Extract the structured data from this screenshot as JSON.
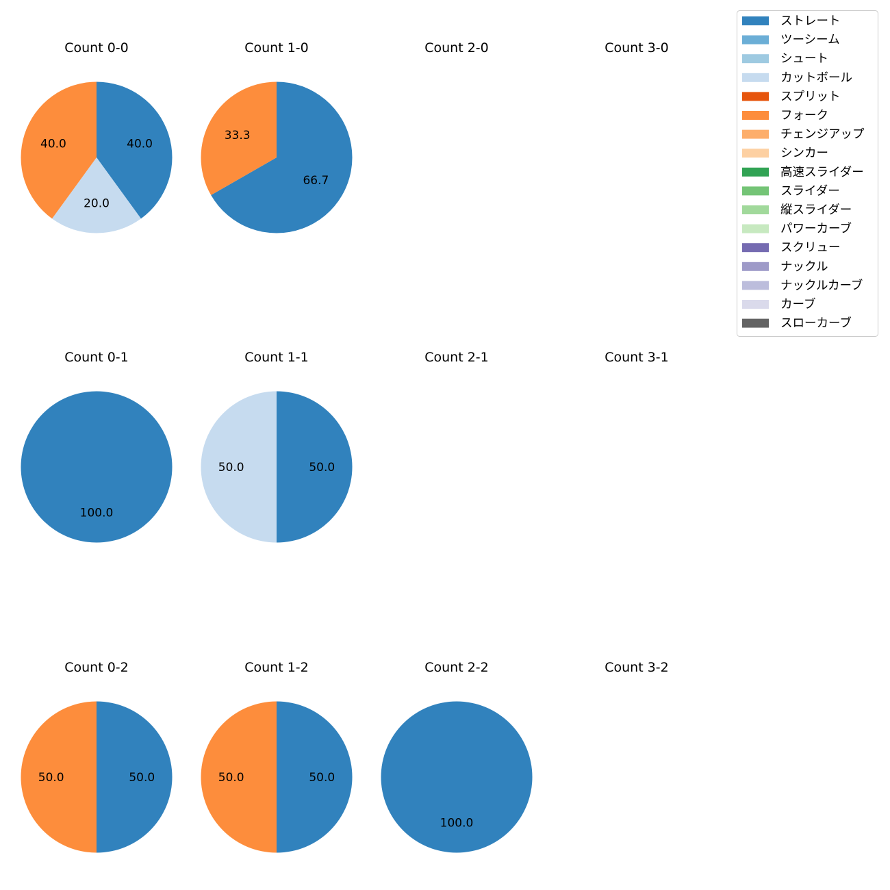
{
  "chart_data": {
    "type": "pie",
    "legend": {
      "placement": "top-right",
      "entries": [
        {
          "name": "ストレート",
          "color": "#3182bd"
        },
        {
          "name": "ツーシーム",
          "color": "#6baed6"
        },
        {
          "name": "シュート",
          "color": "#9ecae1"
        },
        {
          "name": "カットボール",
          "color": "#c6dbef"
        },
        {
          "name": "スプリット",
          "color": "#e6550d"
        },
        {
          "name": "フォーク",
          "color": "#fd8d3c"
        },
        {
          "name": "チェンジアップ",
          "color": "#fdae6b"
        },
        {
          "name": "シンカー",
          "color": "#fdd0a2"
        },
        {
          "name": "高速スライダー",
          "color": "#31a354"
        },
        {
          "name": "スライダー",
          "color": "#74c476"
        },
        {
          "name": "縦スライダー",
          "color": "#a1d99b"
        },
        {
          "name": "パワーカーブ",
          "color": "#c7e9c0"
        },
        {
          "name": "スクリュー",
          "color": "#756bb1"
        },
        {
          "name": "ナックル",
          "color": "#9e9ac8"
        },
        {
          "name": "ナックルカーブ",
          "color": "#bcbddc"
        },
        {
          "name": "カーブ",
          "color": "#dadaeb"
        },
        {
          "name": "スローカーブ",
          "color": "#636363"
        }
      ]
    },
    "panels": [
      {
        "title": "Count 0-0",
        "slices": [
          {
            "pitch": "ストレート",
            "value": 40.0,
            "label": "40.0"
          },
          {
            "pitch": "カットボール",
            "value": 20.0,
            "label": "20.0"
          },
          {
            "pitch": "フォーク",
            "value": 40.0,
            "label": "40.0"
          }
        ]
      },
      {
        "title": "Count 1-0",
        "slices": [
          {
            "pitch": "ストレート",
            "value": 66.7,
            "label": "66.7"
          },
          {
            "pitch": "フォーク",
            "value": 33.3,
            "label": "33.3"
          }
        ]
      },
      {
        "title": "Count 2-0",
        "slices": []
      },
      {
        "title": "Count 3-0",
        "slices": []
      },
      {
        "title": "Count 0-1",
        "slices": [
          {
            "pitch": "ストレート",
            "value": 100.0,
            "label": "100.0"
          }
        ]
      },
      {
        "title": "Count 1-1",
        "slices": [
          {
            "pitch": "ストレート",
            "value": 50.0,
            "label": "50.0"
          },
          {
            "pitch": "カットボール",
            "value": 50.0,
            "label": "50.0"
          }
        ]
      },
      {
        "title": "Count 2-1",
        "slices": []
      },
      {
        "title": "Count 3-1",
        "slices": []
      },
      {
        "title": "Count 0-2",
        "slices": [
          {
            "pitch": "ストレート",
            "value": 50.0,
            "label": "50.0"
          },
          {
            "pitch": "フォーク",
            "value": 50.0,
            "label": "50.0"
          }
        ]
      },
      {
        "title": "Count 1-2",
        "slices": [
          {
            "pitch": "ストレート",
            "value": 50.0,
            "label": "50.0"
          },
          {
            "pitch": "フォーク",
            "value": 50.0,
            "label": "50.0"
          }
        ]
      },
      {
        "title": "Count 2-2",
        "slices": [
          {
            "pitch": "ストレート",
            "value": 100.0,
            "label": "100.0"
          }
        ]
      },
      {
        "title": "Count 3-2",
        "slices": []
      }
    ]
  }
}
